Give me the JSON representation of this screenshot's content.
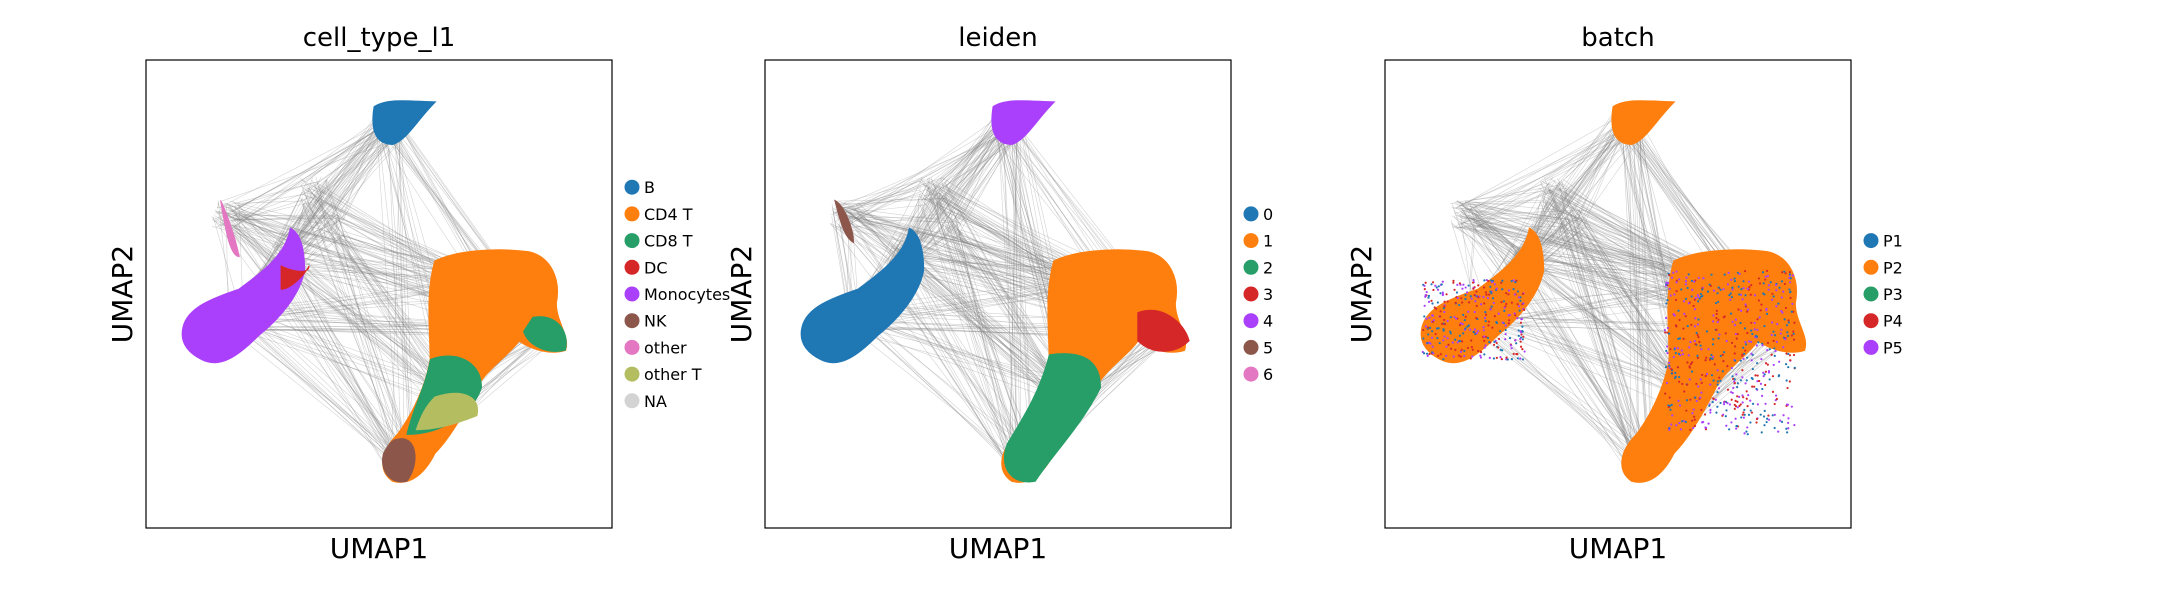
{
  "figure": {
    "panels": [
      {
        "title": "cell_type_l1",
        "xlabel": "UMAP1",
        "ylabel": "UMAP2"
      },
      {
        "title": "leiden",
        "xlabel": "UMAP1",
        "ylabel": "UMAP2"
      },
      {
        "title": "batch",
        "xlabel": "UMAP1",
        "ylabel": "UMAP2"
      }
    ]
  },
  "chart_data": [
    {
      "type": "scatter",
      "title": "cell_type_l1",
      "xlabel": "UMAP1",
      "ylabel": "UMAP2",
      "grid": false,
      "ticks": false,
      "edges_color": "#808080",
      "legend_placement": "right of plot",
      "legend": [
        {
          "label": "B",
          "color": "#1f77b4"
        },
        {
          "label": "CD4 T",
          "color": "#ff7f0e"
        },
        {
          "label": "CD8 T",
          "color": "#279e68"
        },
        {
          "label": "DC",
          "color": "#d62728"
        },
        {
          "label": "Monocytes",
          "color": "#aa40fc"
        },
        {
          "label": "NK",
          "color": "#8c564b"
        },
        {
          "label": "other",
          "color": "#e377c2"
        },
        {
          "label": "other T",
          "color": "#b5bd61"
        },
        {
          "label": "NA",
          "color": "#d3d3d3"
        }
      ]
    },
    {
      "type": "scatter",
      "title": "leiden",
      "xlabel": "UMAP1",
      "ylabel": "UMAP2",
      "grid": false,
      "ticks": false,
      "edges_color": "#808080",
      "legend_placement": "right of plot",
      "legend": [
        {
          "label": "0",
          "color": "#1f77b4"
        },
        {
          "label": "1",
          "color": "#ff7f0e"
        },
        {
          "label": "2",
          "color": "#279e68"
        },
        {
          "label": "3",
          "color": "#d62728"
        },
        {
          "label": "4",
          "color": "#aa40fc"
        },
        {
          "label": "5",
          "color": "#8c564b"
        },
        {
          "label": "6",
          "color": "#e377c2"
        }
      ]
    },
    {
      "type": "scatter",
      "title": "batch",
      "xlabel": "UMAP1",
      "ylabel": "UMAP2",
      "grid": false,
      "ticks": false,
      "edges_color": "#808080",
      "legend_placement": "right of plot",
      "legend": [
        {
          "label": "P1",
          "color": "#1f77b4"
        },
        {
          "label": "P2",
          "color": "#ff7f0e"
        },
        {
          "label": "P3",
          "color": "#279e68"
        },
        {
          "label": "P4",
          "color": "#d62728"
        },
        {
          "label": "P5",
          "color": "#aa40fc"
        }
      ]
    }
  ]
}
